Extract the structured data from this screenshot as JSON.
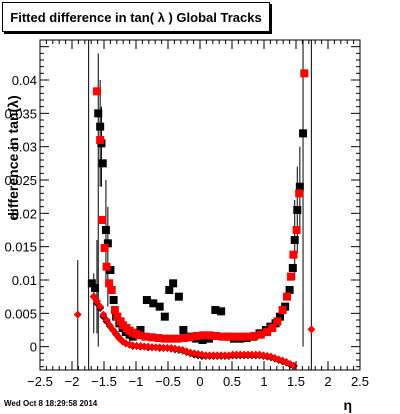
{
  "timestamp": "Wed Oct  8 18:29:58 2014",
  "chart_data": {
    "type": "scatter",
    "title": "Fitted difference in tan( λ )  Global Tracks",
    "xlabel": "η",
    "ylabel": "difference in tan(λ)",
    "xlim": [
      -2.5,
      2.5
    ],
    "ylim": [
      -0.0035,
      0.046
    ],
    "x_ticks": [
      -2.5,
      -2,
      -1.5,
      -1,
      -0.5,
      0,
      0.5,
      1,
      1.5,
      2,
      2.5
    ],
    "x_tick_labels": [
      "−2.5",
      "−2",
      "−1.5",
      "−1",
      "−0.5",
      "0",
      "0.5",
      "1",
      "1.5",
      "2",
      "2.5"
    ],
    "y_ticks": [
      0,
      0.005,
      0.01,
      0.015,
      0.02,
      0.025,
      0.03,
      0.035,
      0.04
    ],
    "y_tick_labels": [
      "0",
      "0.005",
      "0.01",
      "0.015",
      "0.02",
      "0.025",
      "0.03",
      "0.035",
      "0.04"
    ],
    "grid": false,
    "colors": {
      "black_series": "#000000",
      "red_series": "#ff0000"
    },
    "series": [
      {
        "marker": "square",
        "color": "#000000",
        "points": [
          [
            -1.69,
            0.0095
          ],
          [
            -1.64,
            0.0088
          ],
          [
            -1.59,
            0.035
          ],
          [
            -1.56,
            0.033
          ],
          [
            -1.54,
            0.0305
          ],
          [
            -1.52,
            0.0275
          ],
          [
            -1.47,
            0.0175
          ],
          [
            -1.44,
            0.0155
          ],
          [
            -1.4,
            0.0115
          ],
          [
            -1.35,
            0.007
          ],
          [
            -1.31,
            0.0045
          ],
          [
            -1.26,
            0.0035
          ],
          [
            -1.21,
            0.0028
          ],
          [
            -1.16,
            0.0022
          ],
          [
            -1.1,
            0.0018
          ],
          [
            -1.05,
            0.0015
          ],
          [
            -0.93,
            0.0025
          ],
          [
            -0.83,
            0.007
          ],
          [
            -0.73,
            0.0065
          ],
          [
            -0.63,
            0.006
          ],
          [
            -0.55,
            0.0045
          ],
          [
            -0.48,
            0.0085
          ],
          [
            -0.42,
            0.0095
          ],
          [
            -0.33,
            0.0075
          ],
          [
            -0.26,
            0.0025
          ],
          [
            -0.16,
            0.0015
          ],
          [
            -0.06,
            0.0012
          ],
          [
            0.04,
            0.001
          ],
          [
            0.14,
            0.0012
          ],
          [
            0.24,
            0.0055
          ],
          [
            0.33,
            0.0053
          ],
          [
            0.43,
            0.0015
          ],
          [
            0.53,
            0.0012
          ],
          [
            0.63,
            0.0012
          ],
          [
            0.73,
            0.0013
          ],
          [
            0.83,
            0.0015
          ],
          [
            0.93,
            0.002
          ],
          [
            1.03,
            0.0025
          ],
          [
            1.1,
            0.003
          ],
          [
            1.18,
            0.0035
          ],
          [
            1.25,
            0.0045
          ],
          [
            1.33,
            0.006
          ],
          [
            1.4,
            0.0085
          ],
          [
            1.45,
            0.0118
          ],
          [
            1.48,
            0.016
          ],
          [
            1.52,
            0.0205
          ],
          [
            1.56,
            0.024
          ],
          [
            1.61,
            0.032
          ]
        ]
      },
      {
        "marker": "square",
        "color": "#ff0000",
        "points": [
          [
            -1.61,
            0.0383
          ],
          [
            -1.56,
            0.031
          ],
          [
            -1.53,
            0.019
          ],
          [
            -1.49,
            0.0148
          ],
          [
            -1.46,
            0.012
          ],
          [
            -1.42,
            0.0095
          ],
          [
            -1.38,
            0.0085
          ],
          [
            -1.33,
            0.0055
          ],
          [
            -1.29,
            0.0045
          ],
          [
            -1.24,
            0.0038
          ],
          [
            -1.2,
            0.0032
          ],
          [
            -1.15,
            0.0028
          ],
          [
            -1.1,
            0.0024
          ],
          [
            -1.05,
            0.0021
          ],
          [
            -1.0,
            0.0019
          ],
          [
            -0.95,
            0.0017
          ],
          [
            -0.85,
            0.0015
          ],
          [
            -0.75,
            0.0014
          ],
          [
            -0.65,
            0.0013
          ],
          [
            -0.55,
            0.0012
          ],
          [
            -0.45,
            0.0012
          ],
          [
            -0.35,
            0.0012
          ],
          [
            -0.25,
            0.0013
          ],
          [
            -0.15,
            0.0014
          ],
          [
            -0.05,
            0.0016
          ],
          [
            0.05,
            0.0017
          ],
          [
            0.15,
            0.0017
          ],
          [
            0.25,
            0.0016
          ],
          [
            0.35,
            0.0015
          ],
          [
            0.45,
            0.0015
          ],
          [
            0.55,
            0.0015
          ],
          [
            0.65,
            0.0015
          ],
          [
            0.75,
            0.0015
          ],
          [
            0.85,
            0.0016
          ],
          [
            0.95,
            0.0018
          ],
          [
            1.05,
            0.0022
          ],
          [
            1.13,
            0.0028
          ],
          [
            1.21,
            0.0038
          ],
          [
            1.29,
            0.0055
          ],
          [
            1.36,
            0.0075
          ],
          [
            1.42,
            0.0105
          ],
          [
            1.46,
            0.0138
          ],
          [
            1.51,
            0.0175
          ],
          [
            1.55,
            0.023
          ],
          [
            1.63,
            0.041
          ]
        ]
      },
      {
        "marker": "diamond",
        "color": "#000000",
        "points": [
          [
            -1.66,
            0.0075
          ],
          [
            -1.61,
            0.0065
          ],
          [
            -1.56,
            0.0058
          ],
          [
            -1.51,
            0.0045
          ],
          [
            -1.46,
            0.0038
          ],
          [
            -1.41,
            0.0031
          ],
          [
            -1.36,
            0.0025
          ],
          [
            -1.31,
            0.0019
          ],
          [
            -1.26,
            0.0013
          ],
          [
            -1.21,
            0.0008
          ],
          [
            -1.16,
            0.0005
          ],
          [
            -1.1,
            0.0003
          ],
          [
            -1.05,
            0.0001
          ],
          [
            -0.99,
            0.0001
          ],
          [
            -0.93,
            0.0
          ],
          [
            -0.87,
            0.0
          ],
          [
            -0.81,
            -0.0001
          ],
          [
            -0.75,
            -0.0001
          ],
          [
            -0.69,
            -0.0001
          ],
          [
            -0.63,
            -0.0002
          ],
          [
            -0.57,
            -0.0002
          ],
          [
            -0.51,
            -0.0002
          ],
          [
            -0.45,
            -0.0003
          ],
          [
            -0.39,
            -0.0004
          ],
          [
            -0.33,
            -0.0005
          ],
          [
            -0.27,
            -0.0006
          ],
          [
            -0.21,
            -0.0008
          ],
          [
            -0.15,
            -0.001
          ],
          [
            -0.09,
            -0.0012
          ],
          [
            -0.03,
            -0.0013
          ],
          [
            0.03,
            -0.0014
          ],
          [
            0.09,
            -0.0014
          ],
          [
            0.15,
            -0.0014
          ],
          [
            0.21,
            -0.0014
          ],
          [
            0.27,
            -0.0014
          ],
          [
            0.33,
            -0.0014
          ],
          [
            0.39,
            -0.0014
          ],
          [
            0.45,
            -0.0014
          ],
          [
            0.51,
            -0.0013
          ],
          [
            0.57,
            -0.0013
          ],
          [
            0.63,
            -0.0013
          ],
          [
            0.69,
            -0.0013
          ],
          [
            0.75,
            -0.0013
          ],
          [
            0.81,
            -0.0013
          ],
          [
            0.87,
            -0.0013
          ],
          [
            0.93,
            -0.0013
          ],
          [
            0.99,
            -0.0014
          ],
          [
            1.05,
            -0.0015
          ],
          [
            1.11,
            -0.0016
          ],
          [
            1.17,
            -0.0018
          ],
          [
            1.23,
            -0.002
          ],
          [
            1.29,
            -0.0022
          ],
          [
            1.35,
            -0.0024
          ],
          [
            1.41,
            -0.0027
          ],
          [
            1.46,
            -0.0029
          ]
        ]
      },
      {
        "marker": "diamond",
        "color": "#ff0000",
        "points": [
          [
            -1.91,
            0.0048
          ],
          [
            -1.66,
            0.0075
          ],
          [
            -1.61,
            0.0068
          ],
          [
            -1.56,
            0.006
          ],
          [
            -1.51,
            0.0048
          ],
          [
            -1.46,
            0.004
          ],
          [
            -1.41,
            0.0032
          ],
          [
            -1.36,
            0.0025
          ],
          [
            -1.31,
            0.0018
          ],
          [
            -1.26,
            0.0012
          ],
          [
            -1.21,
            0.0008
          ],
          [
            -1.16,
            0.0005
          ],
          [
            -1.1,
            0.0003
          ],
          [
            -1.05,
            0.0002
          ],
          [
            -0.99,
            0.0001
          ],
          [
            -0.93,
            0.0001
          ],
          [
            -0.87,
            0.0
          ],
          [
            -0.81,
            0.0
          ],
          [
            -0.75,
            -0.0001
          ],
          [
            -0.69,
            -0.0001
          ],
          [
            -0.63,
            -0.0001
          ],
          [
            -0.57,
            -0.0002
          ],
          [
            -0.51,
            -0.0002
          ],
          [
            -0.45,
            -0.0002
          ],
          [
            -0.39,
            -0.0003
          ],
          [
            -0.33,
            -0.0004
          ],
          [
            -0.27,
            -0.0005
          ],
          [
            -0.21,
            -0.0007
          ],
          [
            -0.15,
            -0.0009
          ],
          [
            -0.09,
            -0.001
          ],
          [
            -0.03,
            -0.0011
          ],
          [
            0.03,
            -0.0012
          ],
          [
            0.09,
            -0.0013
          ],
          [
            0.15,
            -0.0013
          ],
          [
            0.21,
            -0.0013
          ],
          [
            0.27,
            -0.0013
          ],
          [
            0.33,
            -0.0013
          ],
          [
            0.39,
            -0.0013
          ],
          [
            0.45,
            -0.0013
          ],
          [
            0.51,
            -0.0012
          ],
          [
            0.57,
            -0.0012
          ],
          [
            0.63,
            -0.0012
          ],
          [
            0.69,
            -0.0012
          ],
          [
            0.75,
            -0.0012
          ],
          [
            0.81,
            -0.0012
          ],
          [
            0.87,
            -0.0012
          ],
          [
            0.93,
            -0.0012
          ],
          [
            0.99,
            -0.0013
          ],
          [
            1.05,
            -0.0014
          ],
          [
            1.11,
            -0.0015
          ],
          [
            1.17,
            -0.0017
          ],
          [
            1.23,
            -0.0019
          ],
          [
            1.29,
            -0.0021
          ],
          [
            1.35,
            -0.0023
          ],
          [
            1.41,
            -0.0026
          ],
          [
            1.47,
            -0.0029
          ],
          [
            1.74,
            0.0026
          ]
        ]
      }
    ],
    "error_bars": [
      {
        "x": -1.91,
        "y_low": -0.0035,
        "y_high": 0.013
      },
      {
        "x": -1.74,
        "y_low": -0.0035,
        "y_high": 0.046
      },
      {
        "x": -1.66,
        "y_low": 0.002,
        "y_high": 0.011
      },
      {
        "x": -1.59,
        "y_low": 0.0,
        "y_high": 0.044
      },
      {
        "x": -1.56,
        "y_low": 0.024,
        "y_high": 0.04
      },
      {
        "x": -1.54,
        "y_low": 0.024,
        "y_high": 0.036
      },
      {
        "x": -1.47,
        "y_low": 0.01,
        "y_high": 0.025
      },
      {
        "x": -1.44,
        "y_low": 0.006,
        "y_high": 0.021
      },
      {
        "x": -1.61,
        "y_low": 0.002,
        "y_high": 0.016
      },
      {
        "x": 1.61,
        "y_low": 0.0,
        "y_high": 0.046
      },
      {
        "x": 1.74,
        "y_low": -0.0035,
        "y_high": 0.046
      },
      {
        "x": 1.48,
        "y_low": 0.01,
        "y_high": 0.022
      },
      {
        "x": 1.52,
        "y_low": 0.014,
        "y_high": 0.027
      },
      {
        "x": 1.56,
        "y_low": 0.018,
        "y_high": 0.03
      }
    ]
  }
}
